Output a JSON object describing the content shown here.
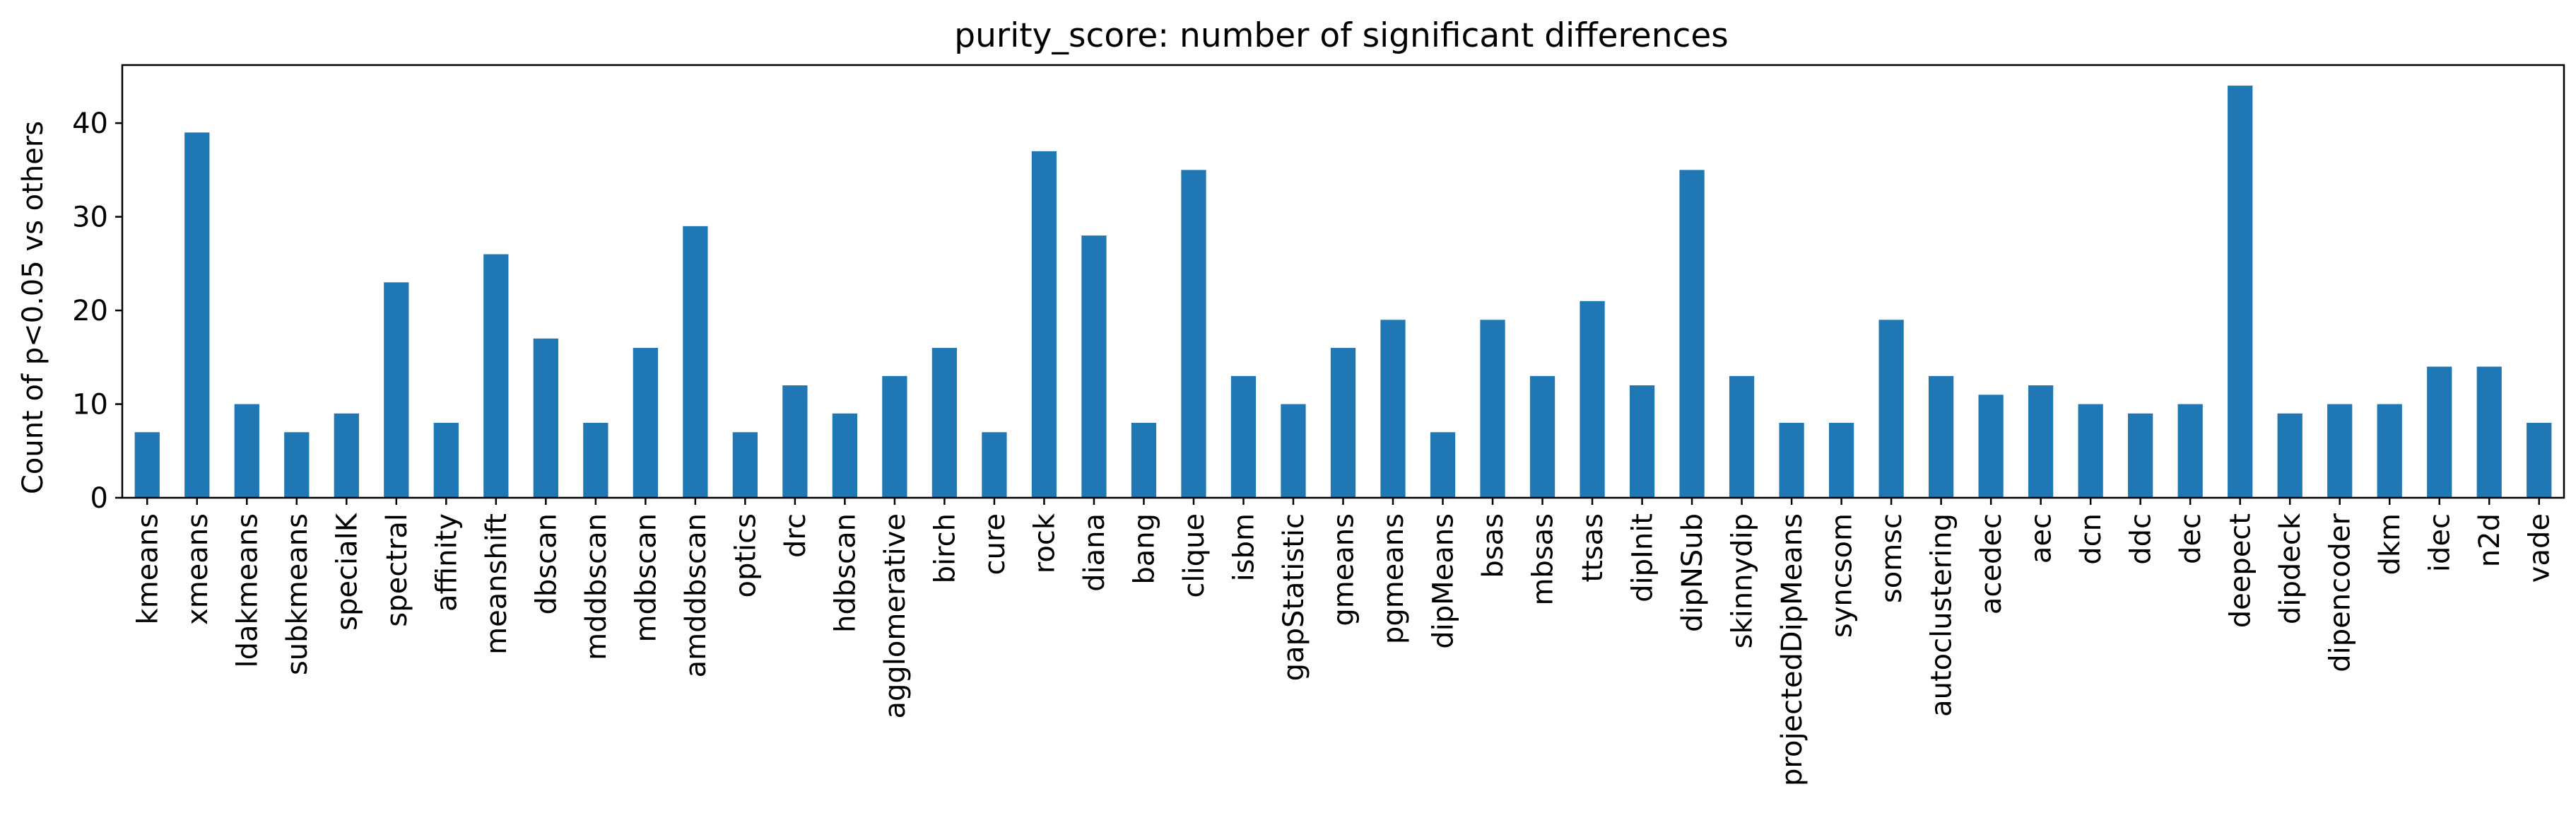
{
  "chart_data": {
    "type": "bar",
    "title": "purity_score: number of significant differences",
    "xlabel": "",
    "ylabel": "Count of p<0.05 vs others",
    "ylim": [
      0,
      46.2
    ],
    "yticks": [
      0,
      10,
      20,
      30,
      40
    ],
    "grid": false,
    "legend": "none",
    "bar_color": "#1f77b4",
    "categories": [
      "kmeans",
      "xmeans",
      "ldakmeans",
      "subkmeans",
      "specialK",
      "spectral",
      "affinity",
      "meanshift",
      "dbscan",
      "mddbscan",
      "mdbscan",
      "amddbscan",
      "optics",
      "drc",
      "hdbscan",
      "agglomerative",
      "birch",
      "cure",
      "rock",
      "diana",
      "bang",
      "clique",
      "isbm",
      "gapStatistic",
      "gmeans",
      "pgmeans",
      "dipMeans",
      "bsas",
      "mbsas",
      "ttsas",
      "dipInit",
      "dipNSub",
      "skinnydip",
      "projectedDipMeans",
      "syncsom",
      "somsc",
      "autoclustering",
      "acedec",
      "aec",
      "dcn",
      "ddc",
      "dec",
      "deepect",
      "dipdeck",
      "dipencoder",
      "dkm",
      "idec",
      "n2d",
      "vade"
    ],
    "values": [
      7,
      39,
      10,
      7,
      9,
      23,
      8,
      26,
      17,
      8,
      16,
      29,
      7,
      12,
      9,
      13,
      16,
      7,
      37,
      28,
      8,
      35,
      13,
      10,
      16,
      19,
      7,
      19,
      13,
      21,
      12,
      35,
      13,
      8,
      8,
      19,
      13,
      11,
      12,
      10,
      9,
      10,
      44,
      9,
      10,
      10,
      14,
      14,
      8
    ]
  }
}
